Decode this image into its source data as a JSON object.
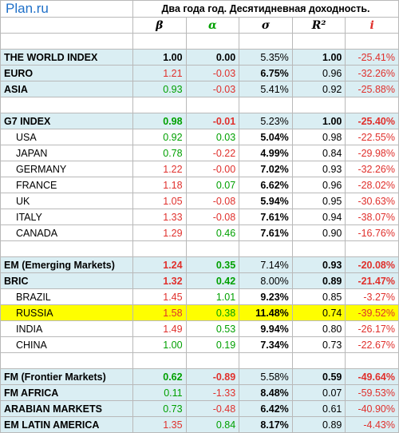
{
  "brand": "Plan.ru",
  "title": "Два года год. Десятидневная доходность.",
  "columns": [
    "β",
    "α",
    "σ",
    "R²",
    "i"
  ],
  "colors": {
    "positive": "#00a000",
    "negative": "#e0302c",
    "brand": "#1f70c8",
    "group_bg": "#daeef3",
    "highlight_bg": "#fefe00"
  },
  "rows": [
    {
      "name": "THE WORLD INDEX",
      "beta": "1.00",
      "alpha": "0.00",
      "sigma": "5.35%",
      "r2": "1.00",
      "i": "-25.41%"
    },
    {
      "name": "EURO",
      "beta": "1.21",
      "alpha": "-0.03",
      "sigma": "6.75%",
      "r2": "0.96",
      "i": "-32.26%"
    },
    {
      "name": "ASIA",
      "beta": "0.93",
      "alpha": "-0.03",
      "sigma": "5.41%",
      "r2": "0.92",
      "i": "-25.88%"
    },
    {
      "name": "G7 INDEX",
      "beta": "0.98",
      "alpha": "-0.01",
      "sigma": "5.23%",
      "r2": "1.00",
      "i": "-25.40%"
    },
    {
      "name": "USA",
      "beta": "0.92",
      "alpha": "0.03",
      "sigma": "5.04%",
      "r2": "0.98",
      "i": "-22.55%"
    },
    {
      "name": "JAPAN",
      "beta": "0.78",
      "alpha": "-0.22",
      "sigma": "4.99%",
      "r2": "0.84",
      "i": "-29.98%"
    },
    {
      "name": "GERMANY",
      "beta": "1.22",
      "alpha": "-0.00",
      "sigma": "7.02%",
      "r2": "0.93",
      "i": "-32.26%"
    },
    {
      "name": "FRANCE",
      "beta": "1.18",
      "alpha": "0.07",
      "sigma": "6.62%",
      "r2": "0.96",
      "i": "-28.02%"
    },
    {
      "name": "UK",
      "beta": "1.05",
      "alpha": "-0.08",
      "sigma": "5.94%",
      "r2": "0.95",
      "i": "-30.63%"
    },
    {
      "name": "ITALY",
      "beta": "1.33",
      "alpha": "-0.08",
      "sigma": "7.61%",
      "r2": "0.94",
      "i": "-38.07%"
    },
    {
      "name": "CANADA",
      "beta": "1.29",
      "alpha": "0.46",
      "sigma": "7.61%",
      "r2": "0.90",
      "i": "-16.76%"
    },
    {
      "name": "EM (Emerging Markets)",
      "beta": "1.24",
      "alpha": "0.35",
      "sigma": "7.14%",
      "r2": "0.93",
      "i": "-20.08%"
    },
    {
      "name": "BRIC",
      "beta": "1.32",
      "alpha": "0.42",
      "sigma": "8.00%",
      "r2": "0.89",
      "i": "-21.47%"
    },
    {
      "name": "BRAZIL",
      "beta": "1.45",
      "alpha": "1.01",
      "sigma": "9.23%",
      "r2": "0.85",
      "i": "-3.27%"
    },
    {
      "name": "RUSSIA",
      "beta": "1.58",
      "alpha": "0.38",
      "sigma": "11.48%",
      "r2": "0.74",
      "i": "-39.52%"
    },
    {
      "name": "INDIA",
      "beta": "1.49",
      "alpha": "0.53",
      "sigma": "9.94%",
      "r2": "0.80",
      "i": "-26.17%"
    },
    {
      "name": "CHINA",
      "beta": "1.00",
      "alpha": "0.19",
      "sigma": "7.34%",
      "r2": "0.73",
      "i": "-22.67%"
    },
    {
      "name": "FM (Frontier Markets)",
      "beta": "0.62",
      "alpha": "-0.89",
      "sigma": "5.58%",
      "r2": "0.59",
      "i": "-49.64%"
    },
    {
      "name": "FM AFRICA",
      "beta": "0.11",
      "alpha": "-1.33",
      "sigma": "8.48%",
      "r2": "0.07",
      "i": "-59.53%"
    },
    {
      "name": "ARABIAN MARKETS",
      "beta": "0.73",
      "alpha": "-0.48",
      "sigma": "6.42%",
      "r2": "0.61",
      "i": "-40.90%"
    },
    {
      "name": "EM LATIN AMERICA",
      "beta": "1.35",
      "alpha": "0.84",
      "sigma": "8.17%",
      "r2": "0.89",
      "i": "-4.43%"
    }
  ]
}
